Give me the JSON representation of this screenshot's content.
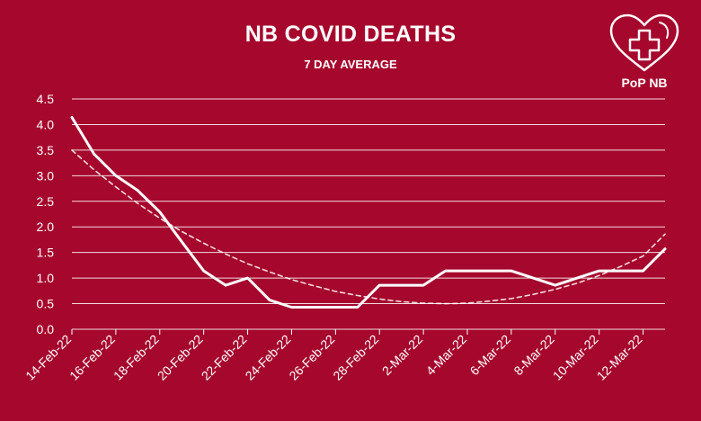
{
  "header": {
    "title": "NB COVID DEATHS",
    "subtitle": "7 DAY AVERAGE"
  },
  "logo": {
    "text": "PoP NB",
    "icon": "heart-cross-icon"
  },
  "colors": {
    "background": "#a6072d",
    "foreground": "#ffffff"
  },
  "chart_data": {
    "type": "line",
    "title": "NB COVID DEATHS",
    "subtitle": "7 DAY AVERAGE",
    "xlabel": "",
    "ylabel": "",
    "ylim": [
      0,
      4.5
    ],
    "yticks": [
      "0.0",
      "0.5",
      "1.0",
      "1.5",
      "2.0",
      "2.5",
      "3.0",
      "3.5",
      "4.0",
      "4.5"
    ],
    "xtick_labels": [
      "14-Feb-22",
      "16-Feb-22",
      "18-Feb-22",
      "20-Feb-22",
      "22-Feb-22",
      "24-Feb-22",
      "26-Feb-22",
      "28-Feb-22",
      "2-Mar-22",
      "4-Mar-22",
      "6-Mar-22",
      "8-Mar-22",
      "10-Mar-22",
      "12-Mar-22"
    ],
    "grid": true,
    "legend": "none",
    "series": [
      {
        "style": "solid",
        "x": [
          "14-Feb-22",
          "15-Feb-22",
          "16-Feb-22",
          "17-Feb-22",
          "18-Feb-22",
          "19-Feb-22",
          "20-Feb-22",
          "21-Feb-22",
          "22-Feb-22",
          "23-Feb-22",
          "24-Feb-22",
          "25-Feb-22",
          "26-Feb-22",
          "27-Feb-22",
          "28-Feb-22",
          "1-Mar-22",
          "2-Mar-22",
          "3-Mar-22",
          "4-Mar-22",
          "5-Mar-22",
          "6-Mar-22",
          "7-Mar-22",
          "8-Mar-22",
          "9-Mar-22",
          "10-Mar-22",
          "11-Mar-22",
          "12-Mar-22",
          "13-Mar-22"
        ],
        "values": [
          4.14,
          3.43,
          3.0,
          2.71,
          2.29,
          1.71,
          1.14,
          0.86,
          1.0,
          0.57,
          0.43,
          0.43,
          0.43,
          0.43,
          0.86,
          0.86,
          0.86,
          1.14,
          1.14,
          1.14,
          1.14,
          1.0,
          0.86,
          1.0,
          1.14,
          1.14,
          1.14,
          1.57
        ]
      },
      {
        "style": "dashed",
        "x": [
          "14-Feb-22",
          "15-Feb-22",
          "16-Feb-22",
          "17-Feb-22",
          "18-Feb-22",
          "19-Feb-22",
          "20-Feb-22",
          "21-Feb-22",
          "22-Feb-22",
          "23-Feb-22",
          "24-Feb-22",
          "25-Feb-22",
          "26-Feb-22",
          "27-Feb-22",
          "28-Feb-22",
          "1-Mar-22",
          "2-Mar-22",
          "3-Mar-22",
          "4-Mar-22",
          "5-Mar-22",
          "6-Mar-22",
          "7-Mar-22",
          "8-Mar-22",
          "9-Mar-22",
          "10-Mar-22",
          "11-Mar-22",
          "12-Mar-22",
          "13-Mar-22"
        ],
        "values": [
          3.5,
          3.12,
          2.78,
          2.46,
          2.17,
          1.91,
          1.68,
          1.47,
          1.28,
          1.12,
          0.97,
          0.85,
          0.74,
          0.66,
          0.59,
          0.54,
          0.51,
          0.5,
          0.51,
          0.55,
          0.6,
          0.68,
          0.78,
          0.9,
          1.05,
          1.23,
          1.43,
          1.86
        ]
      }
    ]
  }
}
